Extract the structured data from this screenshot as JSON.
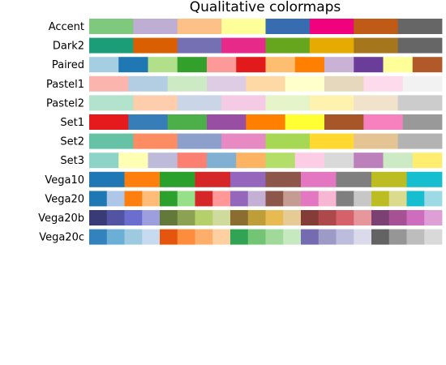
{
  "chart_data": {
    "type": "heatmap",
    "title": "Qualitative colormaps",
    "xlabel": "",
    "ylabel": "",
    "grid": false,
    "axes_visible": false,
    "colormaps": [
      {
        "name": "Accent",
        "colors": [
          "#7fc97f",
          "#beaed4",
          "#fdc086",
          "#ffff99",
          "#386cb0",
          "#f0027f",
          "#bf5b17",
          "#666666"
        ]
      },
      {
        "name": "Dark2",
        "colors": [
          "#1b9e77",
          "#d95f02",
          "#7570b3",
          "#e7298a",
          "#66a61e",
          "#e6ab02",
          "#a6761d",
          "#666666"
        ]
      },
      {
        "name": "Paired",
        "colors": [
          "#a6cee3",
          "#1f78b4",
          "#b2df8a",
          "#33a02c",
          "#fb9a99",
          "#e31a1c",
          "#fdbf6f",
          "#ff7f00",
          "#cab2d6",
          "#6a3d9a",
          "#ffff99",
          "#b15928"
        ]
      },
      {
        "name": "Pastel1",
        "colors": [
          "#fbb4ae",
          "#b3cde3",
          "#ccebc5",
          "#decbe4",
          "#fed9a6",
          "#ffffcc",
          "#e5d8bd",
          "#fddaec",
          "#f2f2f2"
        ]
      },
      {
        "name": "Pastel2",
        "colors": [
          "#b3e2cd",
          "#fdcdac",
          "#cbd5e8",
          "#f4cae4",
          "#e6f5c9",
          "#fff2ae",
          "#f1e2cc",
          "#cccccc"
        ]
      },
      {
        "name": "Set1",
        "colors": [
          "#e41a1c",
          "#377eb8",
          "#4daf4a",
          "#984ea3",
          "#ff7f00",
          "#ffff33",
          "#a65628",
          "#f781bf",
          "#999999"
        ]
      },
      {
        "name": "Set2",
        "colors": [
          "#66c2a5",
          "#fc8d62",
          "#8da0cb",
          "#e78ac3",
          "#a6d854",
          "#ffd92f",
          "#e5c494",
          "#b3b3b3"
        ]
      },
      {
        "name": "Set3",
        "colors": [
          "#8dd3c7",
          "#ffffb3",
          "#bebada",
          "#fb8072",
          "#80b1d3",
          "#fdb462",
          "#b3de69",
          "#fccde5",
          "#d9d9d9",
          "#bc80bd",
          "#ccebc5",
          "#ffed6f"
        ]
      },
      {
        "name": "Vega10",
        "colors": [
          "#1f77b4",
          "#ff7f0e",
          "#2ca02c",
          "#d62728",
          "#9467bd",
          "#8c564b",
          "#e377c2",
          "#7f7f7f",
          "#bcbd22",
          "#17becf"
        ]
      },
      {
        "name": "Vega20",
        "colors": [
          "#1f77b4",
          "#aec7e8",
          "#ff7f0e",
          "#ffbb78",
          "#2ca02c",
          "#98df8a",
          "#d62728",
          "#ff9896",
          "#9467bd",
          "#c5b0d5",
          "#8c564b",
          "#c49c94",
          "#e377c2",
          "#f7b6d2",
          "#7f7f7f",
          "#c7c7c7",
          "#bcbd22",
          "#dbdb8d",
          "#17becf",
          "#9edae5"
        ]
      },
      {
        "name": "Vega20b",
        "colors": [
          "#393b79",
          "#5254a3",
          "#6b6ecf",
          "#9c9ede",
          "#637939",
          "#8ca252",
          "#b5cf6b",
          "#cedb9c",
          "#8c6d31",
          "#bd9e39",
          "#e7ba52",
          "#e7cb94",
          "#843c39",
          "#ad494a",
          "#d6616b",
          "#e7969c",
          "#7b4173",
          "#a55194",
          "#ce6dbd",
          "#de9ed6"
        ]
      },
      {
        "name": "Vega20c",
        "colors": [
          "#3182bd",
          "#6baed6",
          "#9ecae1",
          "#c6dbef",
          "#e6550d",
          "#fd8d3c",
          "#fdae6b",
          "#fdd0a2",
          "#31a354",
          "#74c476",
          "#a1d99b",
          "#c7e9c0",
          "#756bb1",
          "#9e9ac8",
          "#bcbddc",
          "#dadaeb",
          "#636363",
          "#969696",
          "#bdbdbd",
          "#d9d9d9"
        ]
      }
    ]
  }
}
